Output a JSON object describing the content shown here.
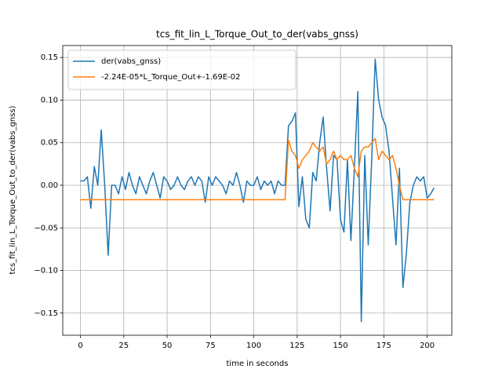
{
  "chart_data": {
    "type": "line",
    "title": "tcs_fit_lin_L_Torque_Out_to_der(vabs_gnss)",
    "xlabel": "time in seconds",
    "ylabel": "tcs_fit_lin_L_Torque_Out_to_der(vabs_gnss)",
    "x": [
      0,
      2,
      4,
      6,
      8,
      10,
      12,
      14,
      16,
      18,
      20,
      22,
      24,
      26,
      28,
      30,
      32,
      34,
      36,
      38,
      40,
      42,
      44,
      46,
      48,
      50,
      52,
      54,
      56,
      58,
      60,
      62,
      64,
      66,
      68,
      70,
      72,
      74,
      76,
      78,
      80,
      82,
      84,
      86,
      88,
      90,
      92,
      94,
      96,
      98,
      100,
      102,
      104,
      106,
      108,
      110,
      112,
      114,
      116,
      118,
      120,
      122,
      124,
      126,
      128,
      130,
      132,
      134,
      136,
      138,
      140,
      142,
      144,
      146,
      148,
      150,
      152,
      154,
      156,
      158,
      160,
      162,
      164,
      166,
      168,
      170,
      172,
      174,
      176,
      178,
      180,
      182,
      184,
      186,
      188,
      190,
      192,
      194,
      196,
      198,
      200,
      202,
      204
    ],
    "series": [
      {
        "name": "der(vabs_gnss)",
        "color": "#1f77b4",
        "values": [
          0.005,
          0.005,
          0.01,
          -0.027,
          0.022,
          0.0,
          0.065,
          0.0,
          -0.082,
          0.0,
          0.0,
          -0.01,
          0.01,
          -0.005,
          0.015,
          0.0,
          -0.01,
          0.01,
          0.0,
          -0.01,
          0.005,
          0.015,
          0.0,
          -0.015,
          0.01,
          0.005,
          -0.005,
          0.0,
          0.01,
          0.0,
          -0.005,
          0.005,
          0.01,
          0.0,
          0.01,
          0.005,
          -0.02,
          0.01,
          0.0,
          0.01,
          0.005,
          0.0,
          -0.01,
          0.005,
          0.0,
          0.015,
          0.0,
          -0.02,
          0.005,
          0.0,
          0.0,
          0.01,
          -0.005,
          0.005,
          0.0,
          0.005,
          -0.01,
          0.005,
          0.0,
          0.0,
          0.07,
          0.075,
          0.085,
          -0.025,
          0.01,
          -0.04,
          -0.05,
          0.015,
          0.005,
          0.05,
          0.08,
          0.02,
          -0.03,
          0.035,
          0.03,
          -0.04,
          -0.055,
          0.03,
          -0.065,
          0.02,
          0.11,
          -0.16,
          0.035,
          -0.07,
          0.03,
          0.148,
          0.1,
          0.08,
          0.07,
          0.04,
          -0.015,
          -0.07,
          0.02,
          -0.12,
          -0.08,
          -0.02,
          0.0,
          0.01,
          0.005,
          0.01,
          -0.015,
          -0.01,
          -0.003
        ]
      },
      {
        "name": "-2.24E-05*L_Torque_Out+-1.69E-02",
        "color": "#ff7f0e",
        "values": [
          -0.0169,
          -0.0169,
          -0.0169,
          -0.0169,
          -0.0169,
          -0.0169,
          -0.0169,
          -0.0169,
          -0.0169,
          -0.0169,
          -0.0169,
          -0.0169,
          -0.0169,
          -0.0169,
          -0.0169,
          -0.0169,
          -0.0169,
          -0.0169,
          -0.0169,
          -0.0169,
          -0.0169,
          -0.0169,
          -0.0169,
          -0.0169,
          -0.0169,
          -0.0169,
          -0.0169,
          -0.0169,
          -0.0169,
          -0.0169,
          -0.0169,
          -0.0169,
          -0.0169,
          -0.0169,
          -0.0169,
          -0.0169,
          -0.0169,
          -0.0169,
          -0.0169,
          -0.0169,
          -0.0169,
          -0.0169,
          -0.0169,
          -0.0169,
          -0.0169,
          -0.0169,
          -0.0169,
          -0.0169,
          -0.0169,
          -0.0169,
          -0.0169,
          -0.0169,
          -0.0169,
          -0.0169,
          -0.0169,
          -0.0169,
          -0.0169,
          -0.0169,
          -0.0169,
          -0.0169,
          0.053,
          0.04,
          0.035,
          0.02,
          0.03,
          0.035,
          0.04,
          0.05,
          0.045,
          0.04,
          0.045,
          0.025,
          0.03,
          0.04,
          0.03,
          0.035,
          0.03,
          0.03,
          0.035,
          0.02,
          0.01,
          0.04,
          0.045,
          0.045,
          0.05,
          0.055,
          0.03,
          0.04,
          0.035,
          0.03,
          0.035,
          0.02,
          0.0,
          -0.0169,
          -0.0169,
          -0.0169,
          -0.0169,
          -0.0169,
          -0.0169,
          -0.0169,
          -0.0169,
          -0.0169,
          -0.0169
        ]
      }
    ],
    "xlim": [
      -10.2,
      214.2
    ],
    "ylim": [
      -0.176,
      0.164
    ],
    "xticks": [
      0,
      25,
      50,
      75,
      100,
      125,
      150,
      175,
      200
    ],
    "yticks": [
      {
        "value": -0.15,
        "label": "−0.15"
      },
      {
        "value": -0.1,
        "label": "−0.10"
      },
      {
        "value": -0.05,
        "label": "−0.05"
      },
      {
        "value": 0,
        "label": "0.00"
      },
      0.05,
      {
        "value": 0.1,
        "label": "0.10"
      },
      0.15
    ],
    "grid": true,
    "legend": "upper-left"
  }
}
